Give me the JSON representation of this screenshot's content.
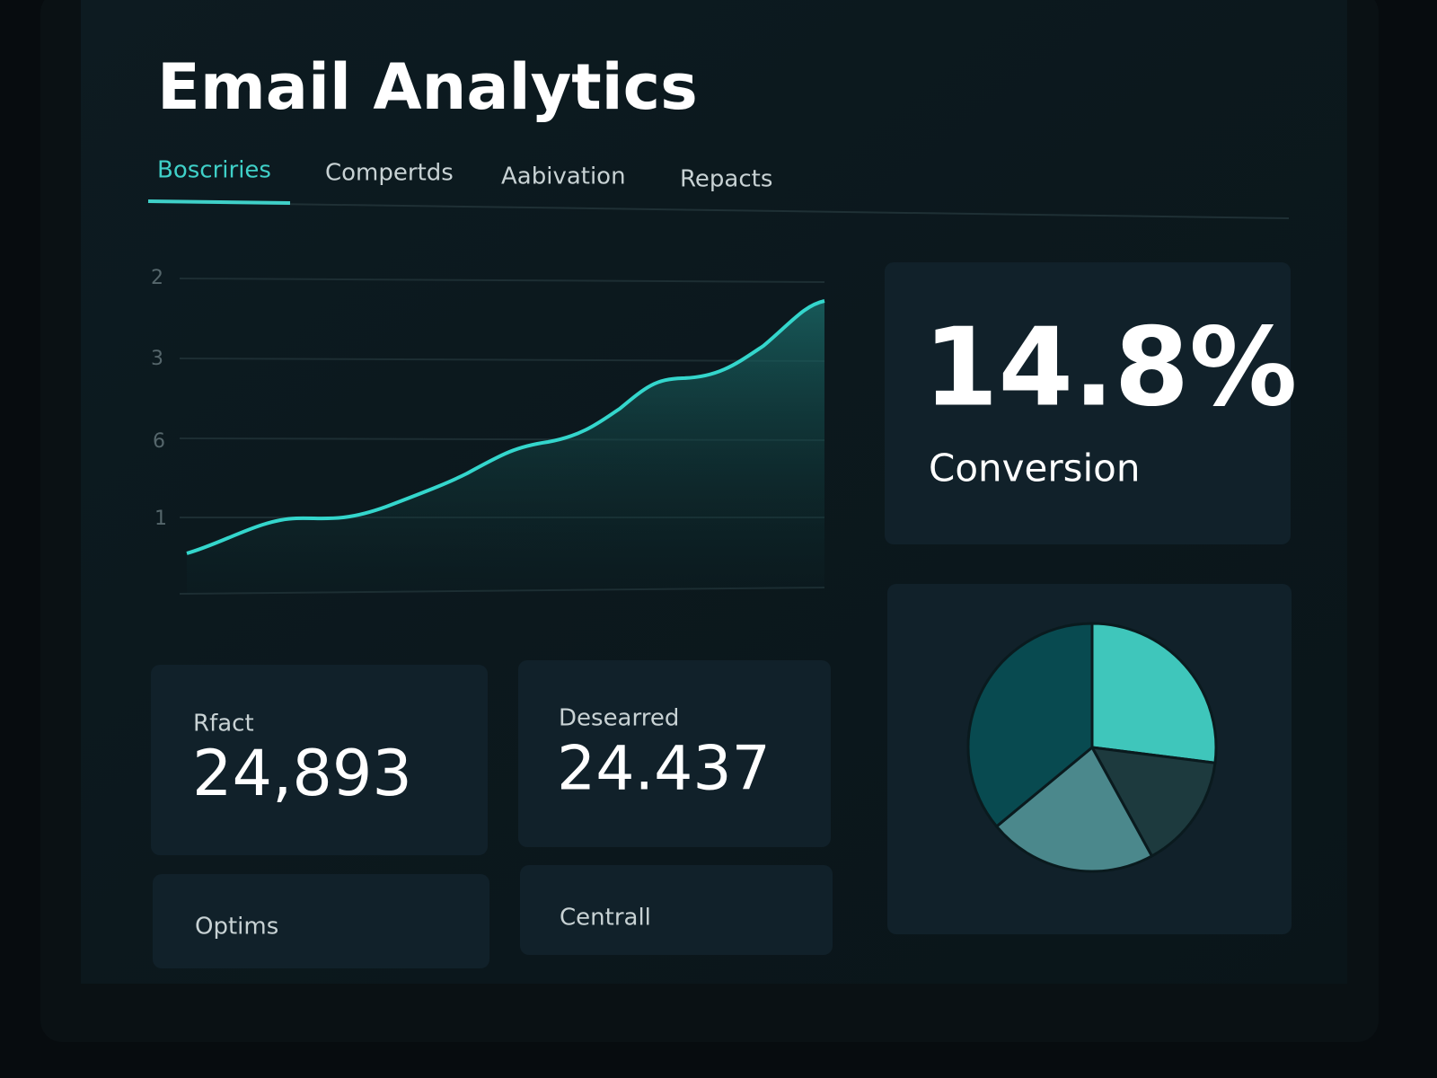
{
  "header": {
    "title": "Email Analytics"
  },
  "tabs": [
    "Boscriries",
    "Compertds",
    "Aabivation",
    "Repacts"
  ],
  "trend": {
    "axis_labels": [
      "2",
      "3",
      "6",
      "1"
    ]
  },
  "kpi": {
    "value": "14.8%",
    "label": "Conversion"
  },
  "cards": [
    {
      "label": "Rfact",
      "value": "24,893"
    },
    {
      "label": "Desearred",
      "value": "24.437"
    },
    {
      "label": "Optims"
    },
    {
      "label": "Centrall"
    }
  ],
  "chart_data": {
    "type": "pie",
    "values": [
      27,
      15,
      22,
      36
    ],
    "colors": [
      "#3fc6bb",
      "#1d3a3e",
      "#4b888c",
      "#084a50"
    ]
  }
}
